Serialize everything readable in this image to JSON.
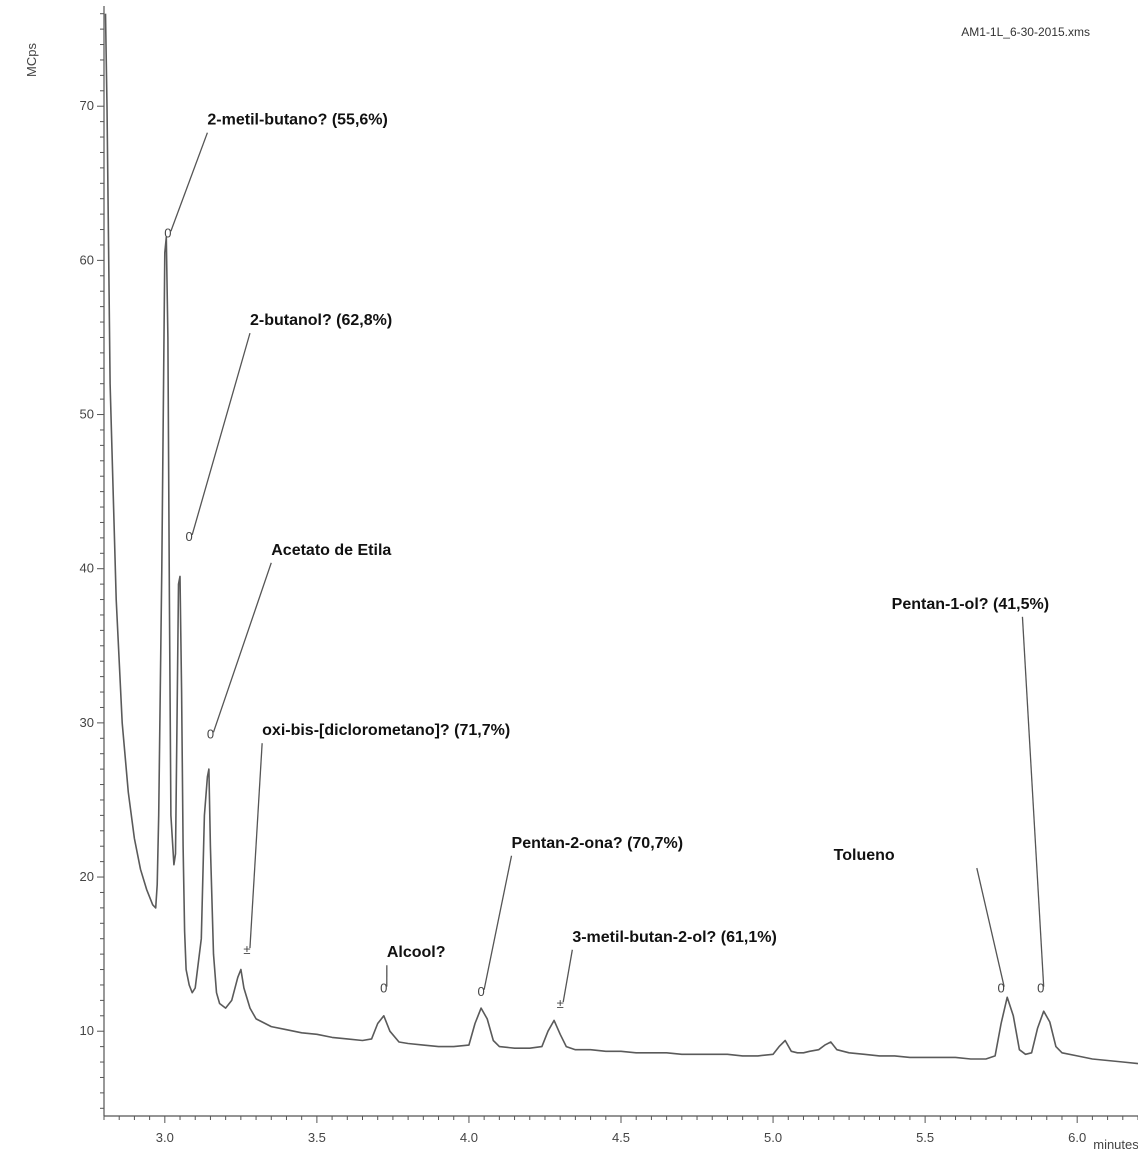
{
  "chart_data": {
    "type": "line",
    "file_name": "AM1-1L_6-30-2015.xms",
    "ylabel": "MCps",
    "xlabel": "minutes",
    "xlim": [
      2.8,
      6.2
    ],
    "ylim": [
      4.5,
      76.5
    ],
    "x_ticks": [
      3.0,
      3.5,
      4.0,
      4.5,
      5.0,
      5.5,
      6.0
    ],
    "x_tick_labels": [
      "3.0",
      "3.5",
      "4.0",
      "4.5",
      "5.0",
      "5.5",
      "6.0"
    ],
    "y_ticks": [
      10,
      20,
      30,
      40,
      50,
      60,
      70
    ],
    "y_tick_labels": [
      "10",
      "20",
      "30",
      "40",
      "50",
      "60",
      "70"
    ],
    "grid": false,
    "series": [
      {
        "color": "#5a5a5a",
        "x": [
          2.805,
          2.81,
          2.82,
          2.84,
          2.86,
          2.88,
          2.9,
          2.92,
          2.94,
          2.96,
          2.97,
          2.975,
          2.98,
          2.99,
          3.0,
          3.005,
          3.01,
          3.015,
          3.02,
          3.03,
          3.035,
          3.04,
          3.045,
          3.05,
          3.055,
          3.06,
          3.065,
          3.07,
          3.08,
          3.09,
          3.1,
          3.12,
          3.13,
          3.14,
          3.145,
          3.15,
          3.16,
          3.17,
          3.18,
          3.2,
          3.22,
          3.24,
          3.25,
          3.26,
          3.28,
          3.3,
          3.35,
          3.4,
          3.45,
          3.5,
          3.55,
          3.6,
          3.65,
          3.68,
          3.7,
          3.72,
          3.74,
          3.77,
          3.8,
          3.85,
          3.9,
          3.95,
          4.0,
          4.02,
          4.04,
          4.06,
          4.08,
          4.1,
          4.15,
          4.2,
          4.24,
          4.26,
          4.28,
          4.3,
          4.32,
          4.35,
          4.4,
          4.45,
          4.5,
          4.55,
          4.6,
          4.65,
          4.7,
          4.75,
          4.8,
          4.85,
          4.9,
          4.95,
          5.0,
          5.02,
          5.04,
          5.06,
          5.08,
          5.1,
          5.12,
          5.15,
          5.17,
          5.19,
          5.21,
          5.25,
          5.3,
          5.35,
          5.4,
          5.45,
          5.5,
          5.55,
          5.6,
          5.65,
          5.7,
          5.73,
          5.75,
          5.77,
          5.79,
          5.81,
          5.83,
          5.85,
          5.87,
          5.89,
          5.91,
          5.93,
          5.95,
          6.0,
          6.05,
          6.1,
          6.15,
          6.2
        ],
        "y": [
          76.0,
          70.0,
          52.0,
          38.0,
          30.0,
          25.5,
          22.5,
          20.5,
          19.2,
          18.2,
          18.0,
          19.5,
          24.0,
          40.0,
          60.5,
          61.5,
          55.0,
          38.0,
          24.0,
          20.8,
          21.5,
          30.0,
          39.0,
          39.5,
          32.0,
          22.0,
          16.5,
          14.0,
          13.0,
          12.5,
          12.8,
          16.0,
          24.0,
          26.5,
          27.0,
          22.0,
          15.0,
          12.5,
          11.8,
          11.5,
          12.0,
          13.5,
          14.0,
          12.8,
          11.5,
          10.8,
          10.3,
          10.1,
          9.9,
          9.8,
          9.6,
          9.5,
          9.4,
          9.5,
          10.5,
          11.0,
          10.0,
          9.3,
          9.2,
          9.1,
          9.0,
          9.0,
          9.1,
          10.5,
          11.5,
          10.8,
          9.4,
          9.0,
          8.9,
          8.9,
          9.0,
          10.0,
          10.7,
          9.8,
          9.0,
          8.8,
          8.8,
          8.7,
          8.7,
          8.6,
          8.6,
          8.6,
          8.5,
          8.5,
          8.5,
          8.5,
          8.4,
          8.4,
          8.5,
          9.0,
          9.4,
          8.7,
          8.6,
          8.6,
          8.7,
          8.8,
          9.1,
          9.3,
          8.8,
          8.6,
          8.5,
          8.4,
          8.4,
          8.3,
          8.3,
          8.3,
          8.3,
          8.2,
          8.2,
          8.4,
          10.5,
          12.2,
          11.0,
          8.8,
          8.5,
          8.6,
          10.2,
          11.3,
          10.6,
          9.0,
          8.6,
          8.4,
          8.2,
          8.1,
          8.0,
          7.9
        ]
      }
    ],
    "annotations": [
      {
        "label": "2-metil-butano? (55,6%)",
        "marker": "0",
        "peak_x": 3.01,
        "peak_y": 61.5,
        "text_x": 3.14,
        "text_y": 68.8
      },
      {
        "label": "2-butanol? (62,8%)",
        "marker": "0",
        "peak_x": 3.08,
        "peak_y": 41.8,
        "text_x": 3.28,
        "text_y": 55.8
      },
      {
        "label": "Acetato de Etila",
        "marker": "0",
        "peak_x": 3.15,
        "peak_y": 29.0,
        "text_x": 3.35,
        "text_y": 40.9
      },
      {
        "label": "oxi-bis-[diclorometano]? (71,7%)",
        "marker": "±",
        "peak_x": 3.27,
        "peak_y": 15.0,
        "text_x": 3.32,
        "text_y": 29.2
      },
      {
        "label": "Alcool?",
        "marker": "0",
        "peak_x": 3.72,
        "peak_y": 12.5,
        "text_x": 3.73,
        "text_y": 14.8
      },
      {
        "label": "Pentan-2-ona? (70,7%)",
        "marker": "0",
        "peak_x": 4.04,
        "peak_y": 12.3,
        "text_x": 4.14,
        "text_y": 21.9
      },
      {
        "label": "3-metil-butan-2-ol? (61,1%)",
        "marker": "±",
        "peak_x": 4.3,
        "peak_y": 11.5,
        "text_x": 4.34,
        "text_y": 15.8
      },
      {
        "label": "Tolueno",
        "marker": "0",
        "peak_x": 5.75,
        "peak_y": 12.5,
        "text_x": 5.4,
        "text_y": 21.1,
        "anchor": "end",
        "leader_from_x": 5.67
      },
      {
        "label": "Pentan-1-ol? (41,5%)",
        "marker": "0",
        "peak_x": 5.88,
        "peak_y": 12.5,
        "text_x": 5.39,
        "text_y": 37.4,
        "leader_from_x": 5.82
      }
    ]
  }
}
